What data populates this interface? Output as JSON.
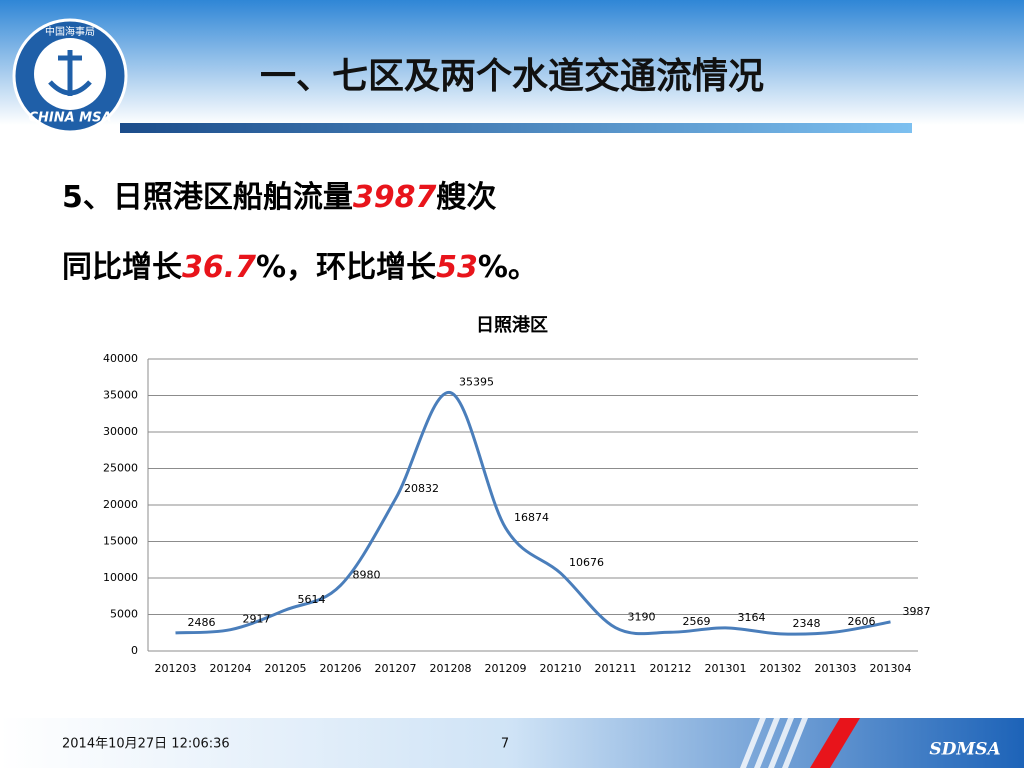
{
  "logo": {
    "top": "中国海事局",
    "bottom": "CHINA MSA"
  },
  "header": {
    "title": "一、七区及两个水道交通流情况"
  },
  "summary": {
    "line1": [
      "5、日照港区船舶流量",
      "3987",
      "艘次"
    ],
    "line2": [
      "同比增长",
      "36.7",
      "%，环比增长",
      "53",
      "%。"
    ]
  },
  "footer": {
    "datetime": "2014年10月27日  12:06:36",
    "page": "7",
    "brand": "SDMSA"
  },
  "chart_data": {
    "type": "line",
    "title": "日照港区",
    "categories": [
      "201203",
      "201204",
      "201205",
      "201206",
      "201207",
      "201208",
      "201209",
      "201210",
      "201211",
      "201212",
      "201301",
      "201302",
      "201303",
      "201304"
    ],
    "series": [
      {
        "name": "日照港区",
        "color": "#4a7ebb",
        "values": [
          2486,
          2917,
          5614,
          8980,
          20832,
          35395,
          16874,
          10676,
          3190,
          2569,
          3164,
          2348,
          2606,
          3987
        ]
      }
    ],
    "ylim": [
      0,
      40000
    ],
    "yticks": [
      0,
      5000,
      10000,
      15000,
      20000,
      25000,
      30000,
      35000,
      40000
    ],
    "grid": true
  }
}
